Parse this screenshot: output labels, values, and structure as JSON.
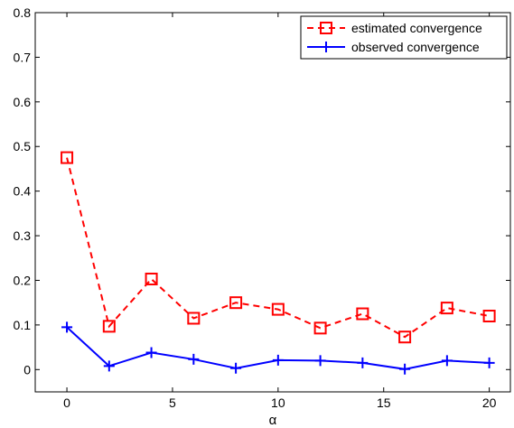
{
  "chart_data": {
    "type": "line",
    "xlabel": "α",
    "ylabel": "",
    "title": "",
    "xlim": [
      -1.5,
      21
    ],
    "ylim": [
      -0.05,
      0.8
    ],
    "xticks": [
      0,
      5,
      10,
      15,
      20
    ],
    "yticks": [
      0,
      0.1,
      0.2,
      0.3,
      0.4,
      0.5,
      0.6,
      0.7,
      0.8
    ],
    "xtick_labels": [
      "0",
      "5",
      "10",
      "15",
      "20"
    ],
    "ytick_labels": [
      "0",
      "0.1",
      "0.2",
      "0.3",
      "0.4",
      "0.5",
      "0.6",
      "0.7",
      "0.8"
    ],
    "grid": false,
    "legend_position": "top-right",
    "x": [
      0,
      2,
      4,
      6,
      8,
      10,
      12,
      14,
      16,
      18,
      20
    ],
    "series": [
      {
        "name": "estimated convergence",
        "color": "#ff0000",
        "line_style": "dashed",
        "marker": "square",
        "values": [
          0.475,
          0.097,
          0.203,
          0.115,
          0.15,
          0.135,
          0.093,
          0.125,
          0.073,
          0.138,
          0.12
        ]
      },
      {
        "name": "observed convergence",
        "color": "#0000ff",
        "line_style": "solid",
        "marker": "plus",
        "values": [
          0.095,
          0.008,
          0.038,
          0.023,
          0.003,
          0.021,
          0.02,
          0.015,
          0.001,
          0.02,
          0.015
        ]
      }
    ]
  }
}
